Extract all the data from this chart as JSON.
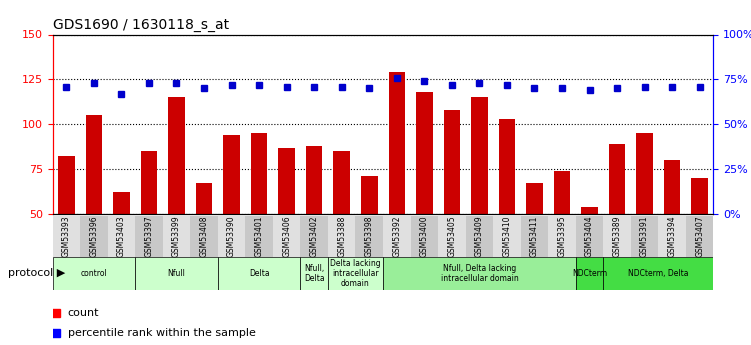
{
  "title": "GDS1690 / 1630118_s_at",
  "samples": [
    "GSM53393",
    "GSM53396",
    "GSM53403",
    "GSM53397",
    "GSM53399",
    "GSM53408",
    "GSM53390",
    "GSM53401",
    "GSM53406",
    "GSM53402",
    "GSM53388",
    "GSM53398",
    "GSM53392",
    "GSM53400",
    "GSM53405",
    "GSM53409",
    "GSM53410",
    "GSM53411",
    "GSM53395",
    "GSM53404",
    "GSM53389",
    "GSM53391",
    "GSM53394",
    "GSM53407"
  ],
  "counts": [
    82,
    105,
    62,
    85,
    115,
    67,
    94,
    95,
    87,
    88,
    85,
    71,
    129,
    118,
    108,
    115,
    103,
    67,
    74,
    54,
    89,
    95,
    80,
    70
  ],
  "percentiles": [
    71,
    73,
    67,
    73,
    73,
    70,
    72,
    72,
    71,
    71,
    71,
    70,
    76,
    74,
    72,
    73,
    72,
    70,
    70,
    69,
    70,
    71,
    71,
    71
  ],
  "ylim_left": [
    50,
    150
  ],
  "ylim_right": [
    0,
    100
  ],
  "yticks_left": [
    50,
    75,
    100,
    125,
    150
  ],
  "yticks_right": [
    0,
    25,
    50,
    75,
    100
  ],
  "ytick_labels_right": [
    "0%",
    "25%",
    "50%",
    "75%",
    "100%"
  ],
  "bar_color": "#cc0000",
  "dot_color": "#0000cc",
  "grid_color": "#000000",
  "bg_color": "#ffffff",
  "plot_bg": "#ffffff",
  "protocol_row": [
    {
      "label": "control",
      "start": 0,
      "end": 3,
      "color": "#ccffcc"
    },
    {
      "label": "Nfull",
      "start": 3,
      "end": 6,
      "color": "#ccffcc"
    },
    {
      "label": "Delta",
      "start": 6,
      "end": 9,
      "color": "#ccffcc"
    },
    {
      "label": "Nfull,\nDelta",
      "start": 9,
      "end": 10,
      "color": "#ccffcc"
    },
    {
      "label": "Delta lacking\nintracellular\ndomain",
      "start": 10,
      "end": 12,
      "color": "#ccffcc"
    },
    {
      "label": "Nfull, Delta lacking\nintracellular domain",
      "start": 12,
      "end": 19,
      "color": "#99ee99"
    },
    {
      "label": "NDCterm",
      "start": 19,
      "end": 20,
      "color": "#44dd44"
    },
    {
      "label": "NDCterm, Delta",
      "start": 20,
      "end": 24,
      "color": "#44dd44"
    }
  ]
}
